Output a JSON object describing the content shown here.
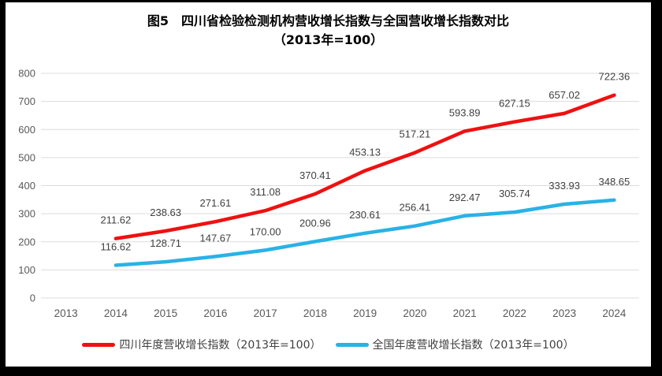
{
  "frame": {
    "border_color": "#000000",
    "card_background": "#ffffff"
  },
  "title": {
    "line1": "图5　四川省检验检测机构营收增长指数与全国营收增长指数对比",
    "line2": "（2013年=100）"
  },
  "chart_data": {
    "type": "line",
    "title": "图5　四川省检验检测机构营收增长指数与全国营收增长指数对比（2013年=100）",
    "categories": [
      "2013",
      "2014",
      "2015",
      "2016",
      "2017",
      "2018",
      "2019",
      "2020",
      "2021",
      "2022",
      "2023",
      "2024"
    ],
    "series": [
      {
        "id": "sichuan-series",
        "name": "四川年度营收增长指数（2013年=100）",
        "color": "#ee1111",
        "start_index": 1,
        "values": [
          211.62,
          238.63,
          271.61,
          311.08,
          370.41,
          453.13,
          517.21,
          593.89,
          627.15,
          657.02,
          722.36
        ]
      },
      {
        "id": "national-series",
        "name": "全国年度营收增长指数（2013年=100）",
        "color": "#29b2e6",
        "start_index": 1,
        "values": [
          116.62,
          128.71,
          147.67,
          170.0,
          200.96,
          230.61,
          256.41,
          292.47,
          305.74,
          333.93,
          348.65
        ]
      }
    ],
    "ylim": [
      0,
      800
    ],
    "ytick_labels": [
      0,
      100,
      200,
      300,
      400,
      500,
      600,
      700,
      800
    ],
    "xlabel": "",
    "ylabel": "",
    "grid": true,
    "grid_color": "#dcdcdc",
    "tick_color": "#595959",
    "data_label_color": "#404040",
    "data_labels": true,
    "legend_position": "bottom"
  }
}
